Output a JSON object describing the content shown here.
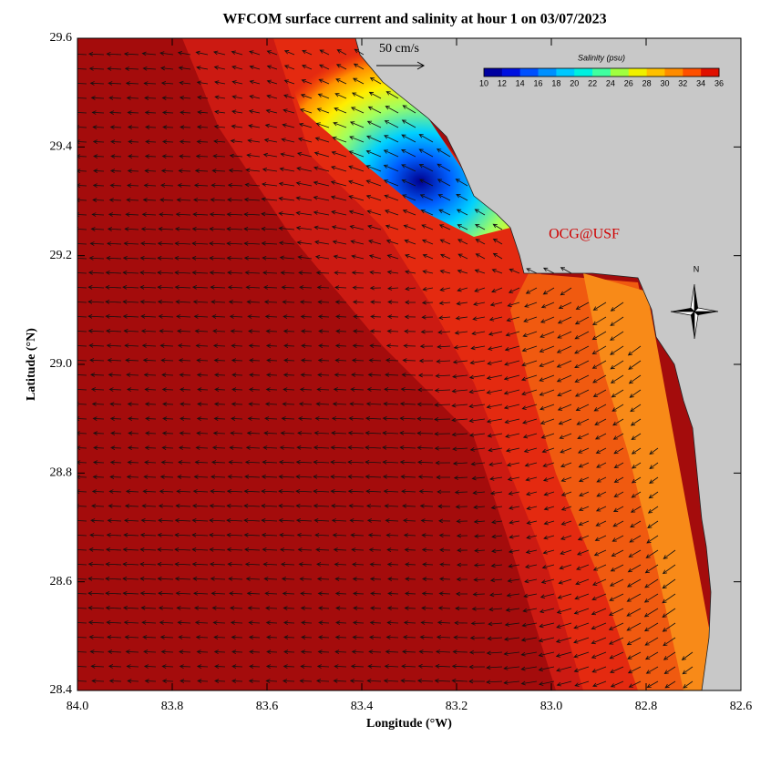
{
  "title": "WFCOM surface current and salinity at hour 1 on 03/07/2023",
  "x_axis": {
    "label": "Longitude (°W)",
    "ticks": [
      {
        "value": 84.0,
        "label": "84.0"
      },
      83.8,
      83.6,
      83.4,
      83.2,
      {
        "value": 83.0,
        "label": "83.0"
      },
      82.8,
      82.6
    ]
  },
  "y_axis": {
    "label": "Latitude (°N)",
    "ticks": [
      29.6,
      29.4,
      29.2,
      {
        "value": 29.0,
        "label": "29.0"
      },
      28.8,
      28.6,
      28.4
    ]
  },
  "colorbar": {
    "title": "Salinity (psu)",
    "ticks": [
      10,
      12,
      14,
      16,
      18,
      20,
      22,
      24,
      26,
      28,
      30,
      32,
      34,
      36
    ],
    "colors": [
      "#0000a0",
      "#0010e0",
      "#0050ff",
      "#0090ff",
      "#00c8ff",
      "#00f0e0",
      "#40ffa0",
      "#a0ff40",
      "#f0f000",
      "#ffc000",
      "#ff8c00",
      "#ff5000",
      "#e01000"
    ]
  },
  "scale_arrow": "50 cm/s",
  "watermark": "OCG@USF",
  "compass": "N"
}
